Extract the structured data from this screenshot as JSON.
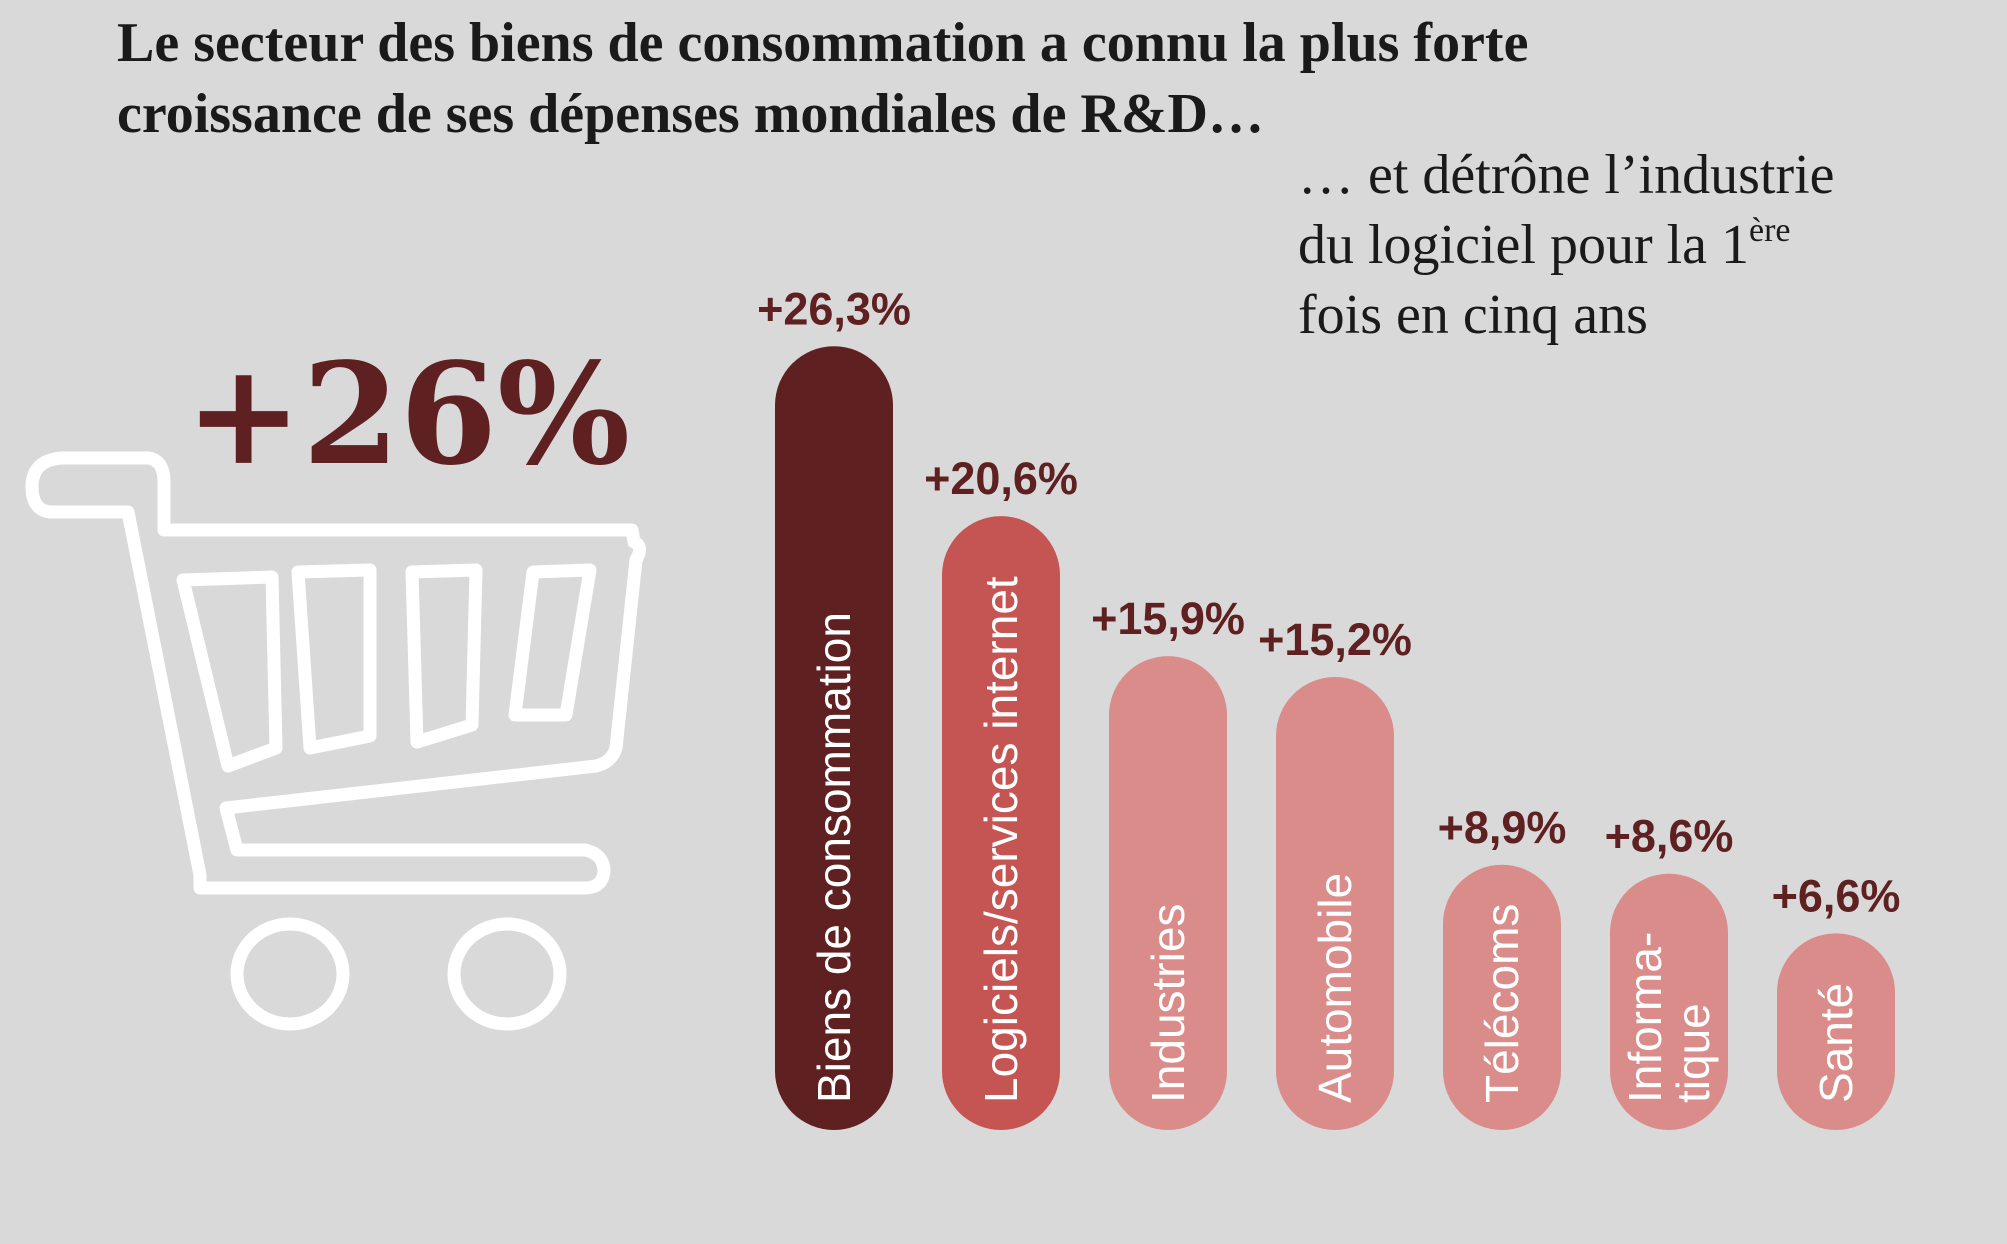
{
  "title": "Le secteur des biens de consommation a connu la plus forte croissance de ses dépenses mondiales de R&D…",
  "subtitle": {
    "line1": "… et détrône l’industrie",
    "line2_prefix": "du logiciel pour la 1",
    "line2_sup": "ère",
    "line3": "fois en cinq ans"
  },
  "big_stat": "+26%",
  "icons": {
    "cart": "shopping-cart-icon"
  },
  "colors": {
    "background": "#d9d9d9",
    "accent_dark": "#5e2020",
    "accent_mid": "#c55552",
    "accent_light": "#d98c8a"
  },
  "chart_data": {
    "type": "bar",
    "categories": [
      "Biens de consommation",
      "Logiciels/services internet",
      "Industries",
      "Automobile",
      "Télécoms",
      "Informa-tique",
      "Santé"
    ],
    "category_lines": [
      [
        "Biens de consommation"
      ],
      [
        "Logiciels/services internet"
      ],
      [
        "Industries"
      ],
      [
        "Automobile"
      ],
      [
        "Télécoms"
      ],
      [
        "Informa-",
        "tique"
      ],
      [
        "Santé"
      ]
    ],
    "values": [
      26.3,
      20.6,
      15.9,
      15.2,
      8.9,
      8.6,
      6.6
    ],
    "value_labels": [
      "+26,3%",
      "+20,6%",
      "+15,9%",
      "+15,2%",
      "+8,9%",
      "+8,6%",
      "+6,6%"
    ],
    "bar_colors": [
      "#5e2020",
      "#c55552",
      "#d98c8a",
      "#d98c8a",
      "#d98c8a",
      "#d98c8a",
      "#d98c8a"
    ]
  }
}
